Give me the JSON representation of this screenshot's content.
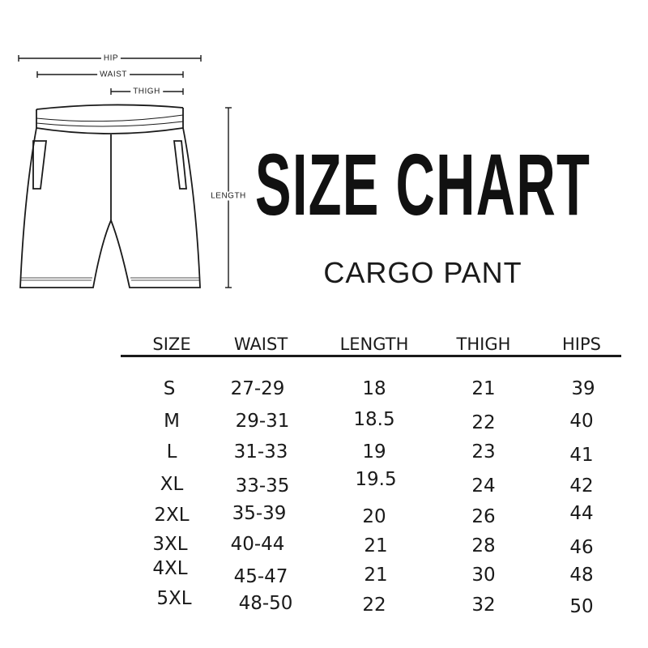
{
  "diagram": {
    "labels": {
      "hip": "HIP",
      "waist": "WAIST",
      "thigh": "THIGH",
      "length": "LENGTH"
    },
    "line_color": "#1a1a1a"
  },
  "title": "SIZE CHART",
  "subtitle": "CARGO PANT",
  "table": {
    "headers": [
      "SIZE",
      "WAIST",
      "LENGTH",
      "THIGH",
      "HIPS"
    ],
    "rows": [
      [
        "S",
        "27-29",
        "18",
        "21",
        "39"
      ],
      [
        "M",
        "29-31",
        "18.5",
        "22",
        "40"
      ],
      [
        "L",
        "31-33",
        "19",
        "23",
        "41"
      ],
      [
        "XL",
        "33-35",
        "19.5",
        "24",
        "42"
      ],
      [
        "2XL",
        "35-39",
        "20",
        "26",
        "44"
      ],
      [
        "3XL",
        "40-44",
        "21",
        "28",
        "46"
      ],
      [
        "4XL",
        "45-47",
        "21",
        "30",
        "48"
      ],
      [
        "5XL",
        "48-50",
        "22",
        "32",
        "50"
      ]
    ]
  }
}
